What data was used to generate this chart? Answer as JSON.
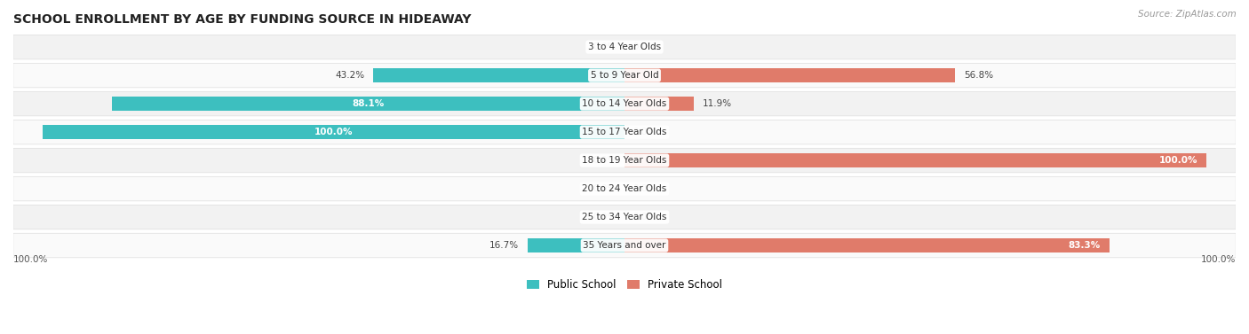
{
  "title": "SCHOOL ENROLLMENT BY AGE BY FUNDING SOURCE IN HIDEAWAY",
  "source": "Source: ZipAtlas.com",
  "categories": [
    "3 to 4 Year Olds",
    "5 to 9 Year Old",
    "10 to 14 Year Olds",
    "15 to 17 Year Olds",
    "18 to 19 Year Olds",
    "20 to 24 Year Olds",
    "25 to 34 Year Olds",
    "35 Years and over"
  ],
  "public_values": [
    0.0,
    43.2,
    88.1,
    100.0,
    0.0,
    0.0,
    0.0,
    16.7
  ],
  "private_values": [
    0.0,
    56.8,
    11.9,
    0.0,
    100.0,
    0.0,
    0.0,
    83.3
  ],
  "public_color": "#3DBFBF",
  "private_color": "#E07B6A",
  "public_color_light": "#A8D8D8",
  "private_color_light": "#F0B5AB",
  "bg_row_even": "#F2F2F2",
  "bg_row_odd": "#FAFAFA",
  "label_fontsize": 7.5,
  "title_fontsize": 10,
  "legend_labels": [
    "Public School",
    "Private School"
  ],
  "bottom_left_label": "100.0%",
  "bottom_right_label": "100.0%"
}
